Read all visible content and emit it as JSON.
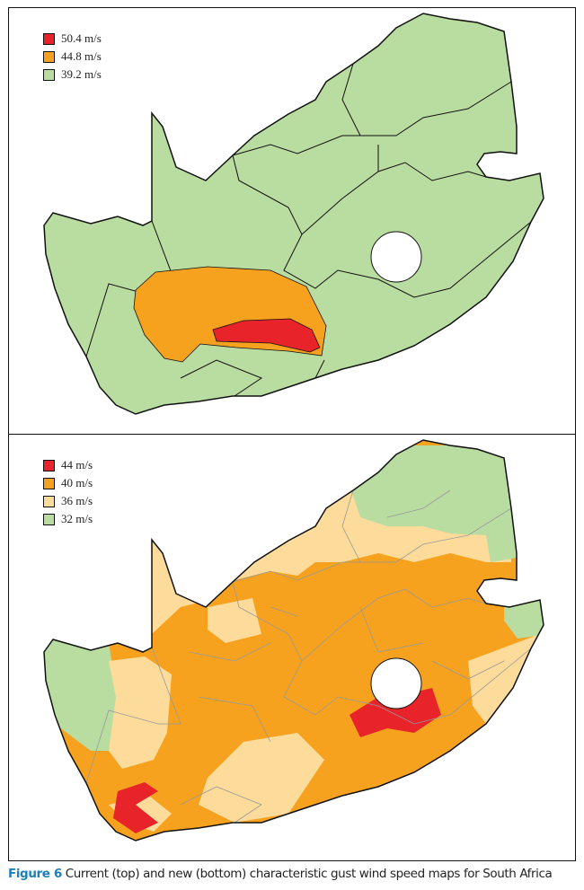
{
  "top_map": {
    "legend": [
      {
        "label": "50.4 m/s",
        "color": "#e8232a"
      },
      {
        "label": "44.8 m/s",
        "color": "#f6a21e"
      },
      {
        "label": "39.2 m/s",
        "color": "#b9dca0"
      }
    ]
  },
  "bottom_map": {
    "legend": [
      {
        "label": "44 m/s",
        "color": "#e8232a"
      },
      {
        "label": "40 m/s",
        "color": "#f6a21e"
      },
      {
        "label": "36 m/s",
        "color": "#fddb9a"
      },
      {
        "label": "32 m/s",
        "color": "#b9dca0"
      }
    ]
  },
  "caption": {
    "figure_label": "Figure 6",
    "text": " Current (top) and new (bottom) characteristic gust wind speed maps for South Africa"
  }
}
